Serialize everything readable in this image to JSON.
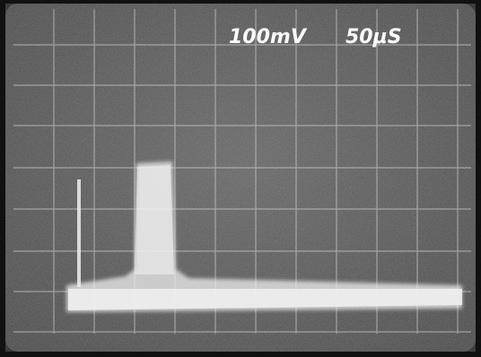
{
  "header": {
    "volts_per_div": "100mV",
    "time_per_div": "50μS"
  }
}
